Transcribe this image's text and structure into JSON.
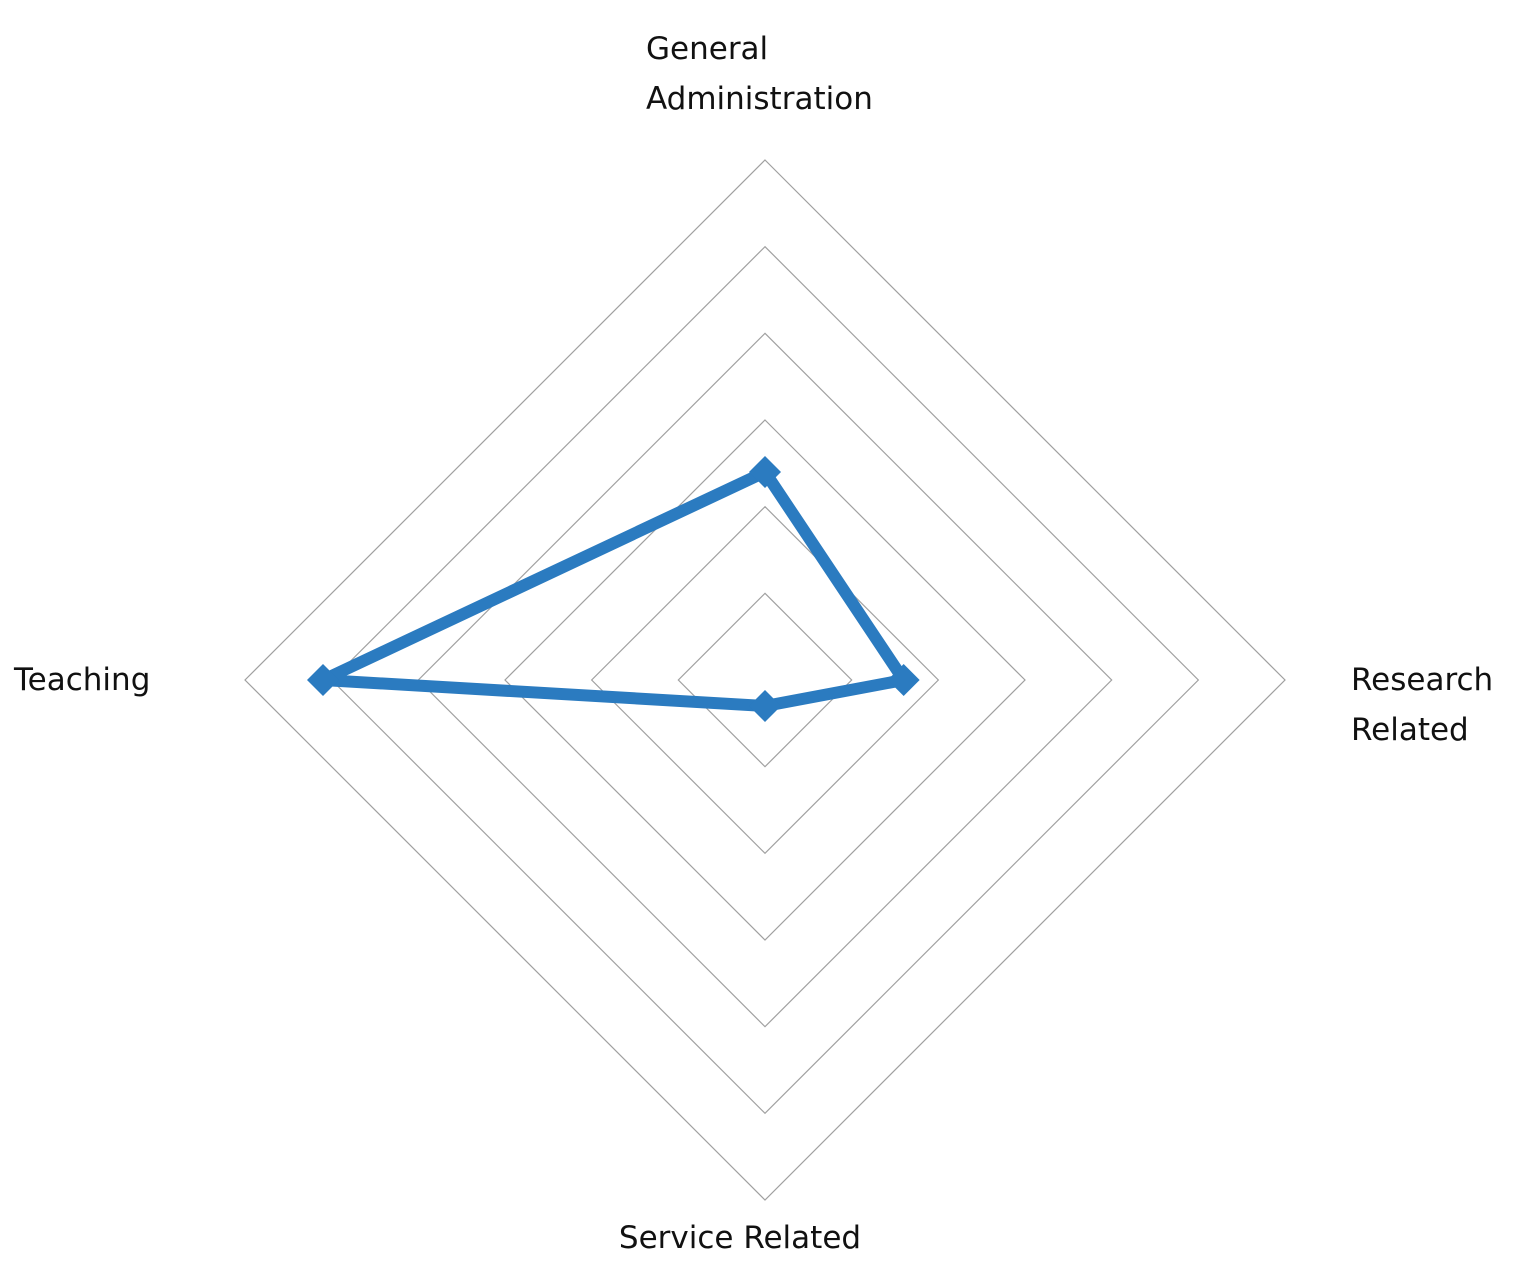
{
  "chart_data": {
    "type": "radar",
    "categories": [
      "General Administration",
      "Research Related",
      "Service Related",
      "Teaching"
    ],
    "series": [
      {
        "color": "#2b7bc0",
        "values": [
          2.4,
          1.6,
          0.3,
          5.1
        ]
      }
    ],
    "ylim": [
      0,
      6
    ],
    "yticks": [
      1,
      2,
      3,
      4,
      5,
      6
    ],
    "grid": true
  }
}
